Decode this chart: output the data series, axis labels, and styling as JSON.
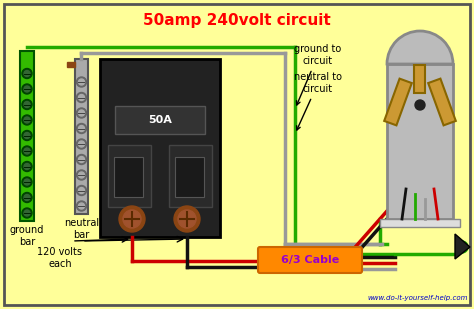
{
  "title": "50amp 240volt circuit",
  "title_color": "#ff0000",
  "title_fontsize": 11,
  "bg_color": "#ffff99",
  "border_color": "#555555",
  "website": "www.do-it-yourself-help.com",
  "website_color": "#0000cc",
  "labels": {
    "ground_bar": "ground\nbar",
    "neutral_bar": "neutral\nbar",
    "ground_to_circuit": "ground to\ncircuit",
    "neutral_to_circuit": "neutral to\ncircuit",
    "cable": "6/3 Cable",
    "cable_text_color": "#9900cc",
    "volts": "120 volts\neach"
  },
  "colors": {
    "green": "#22aa00",
    "black": "#111111",
    "gray": "#999999",
    "light_gray": "#bbbbbb",
    "red": "#cc0000",
    "white": "#ffffff",
    "breaker_body": "#222222",
    "ground_bar_green": "#33bb00",
    "neutral_bar_gray": "#aaaaaa",
    "brown": "#8B4513",
    "brown_light": "#a0522d",
    "tan": "#cc9933",
    "tan_dark": "#886600",
    "outlet_body": "#bbbbbb",
    "outlet_border": "#888888",
    "cable_fill": "#ff8800",
    "cable_border": "#cc6600"
  }
}
